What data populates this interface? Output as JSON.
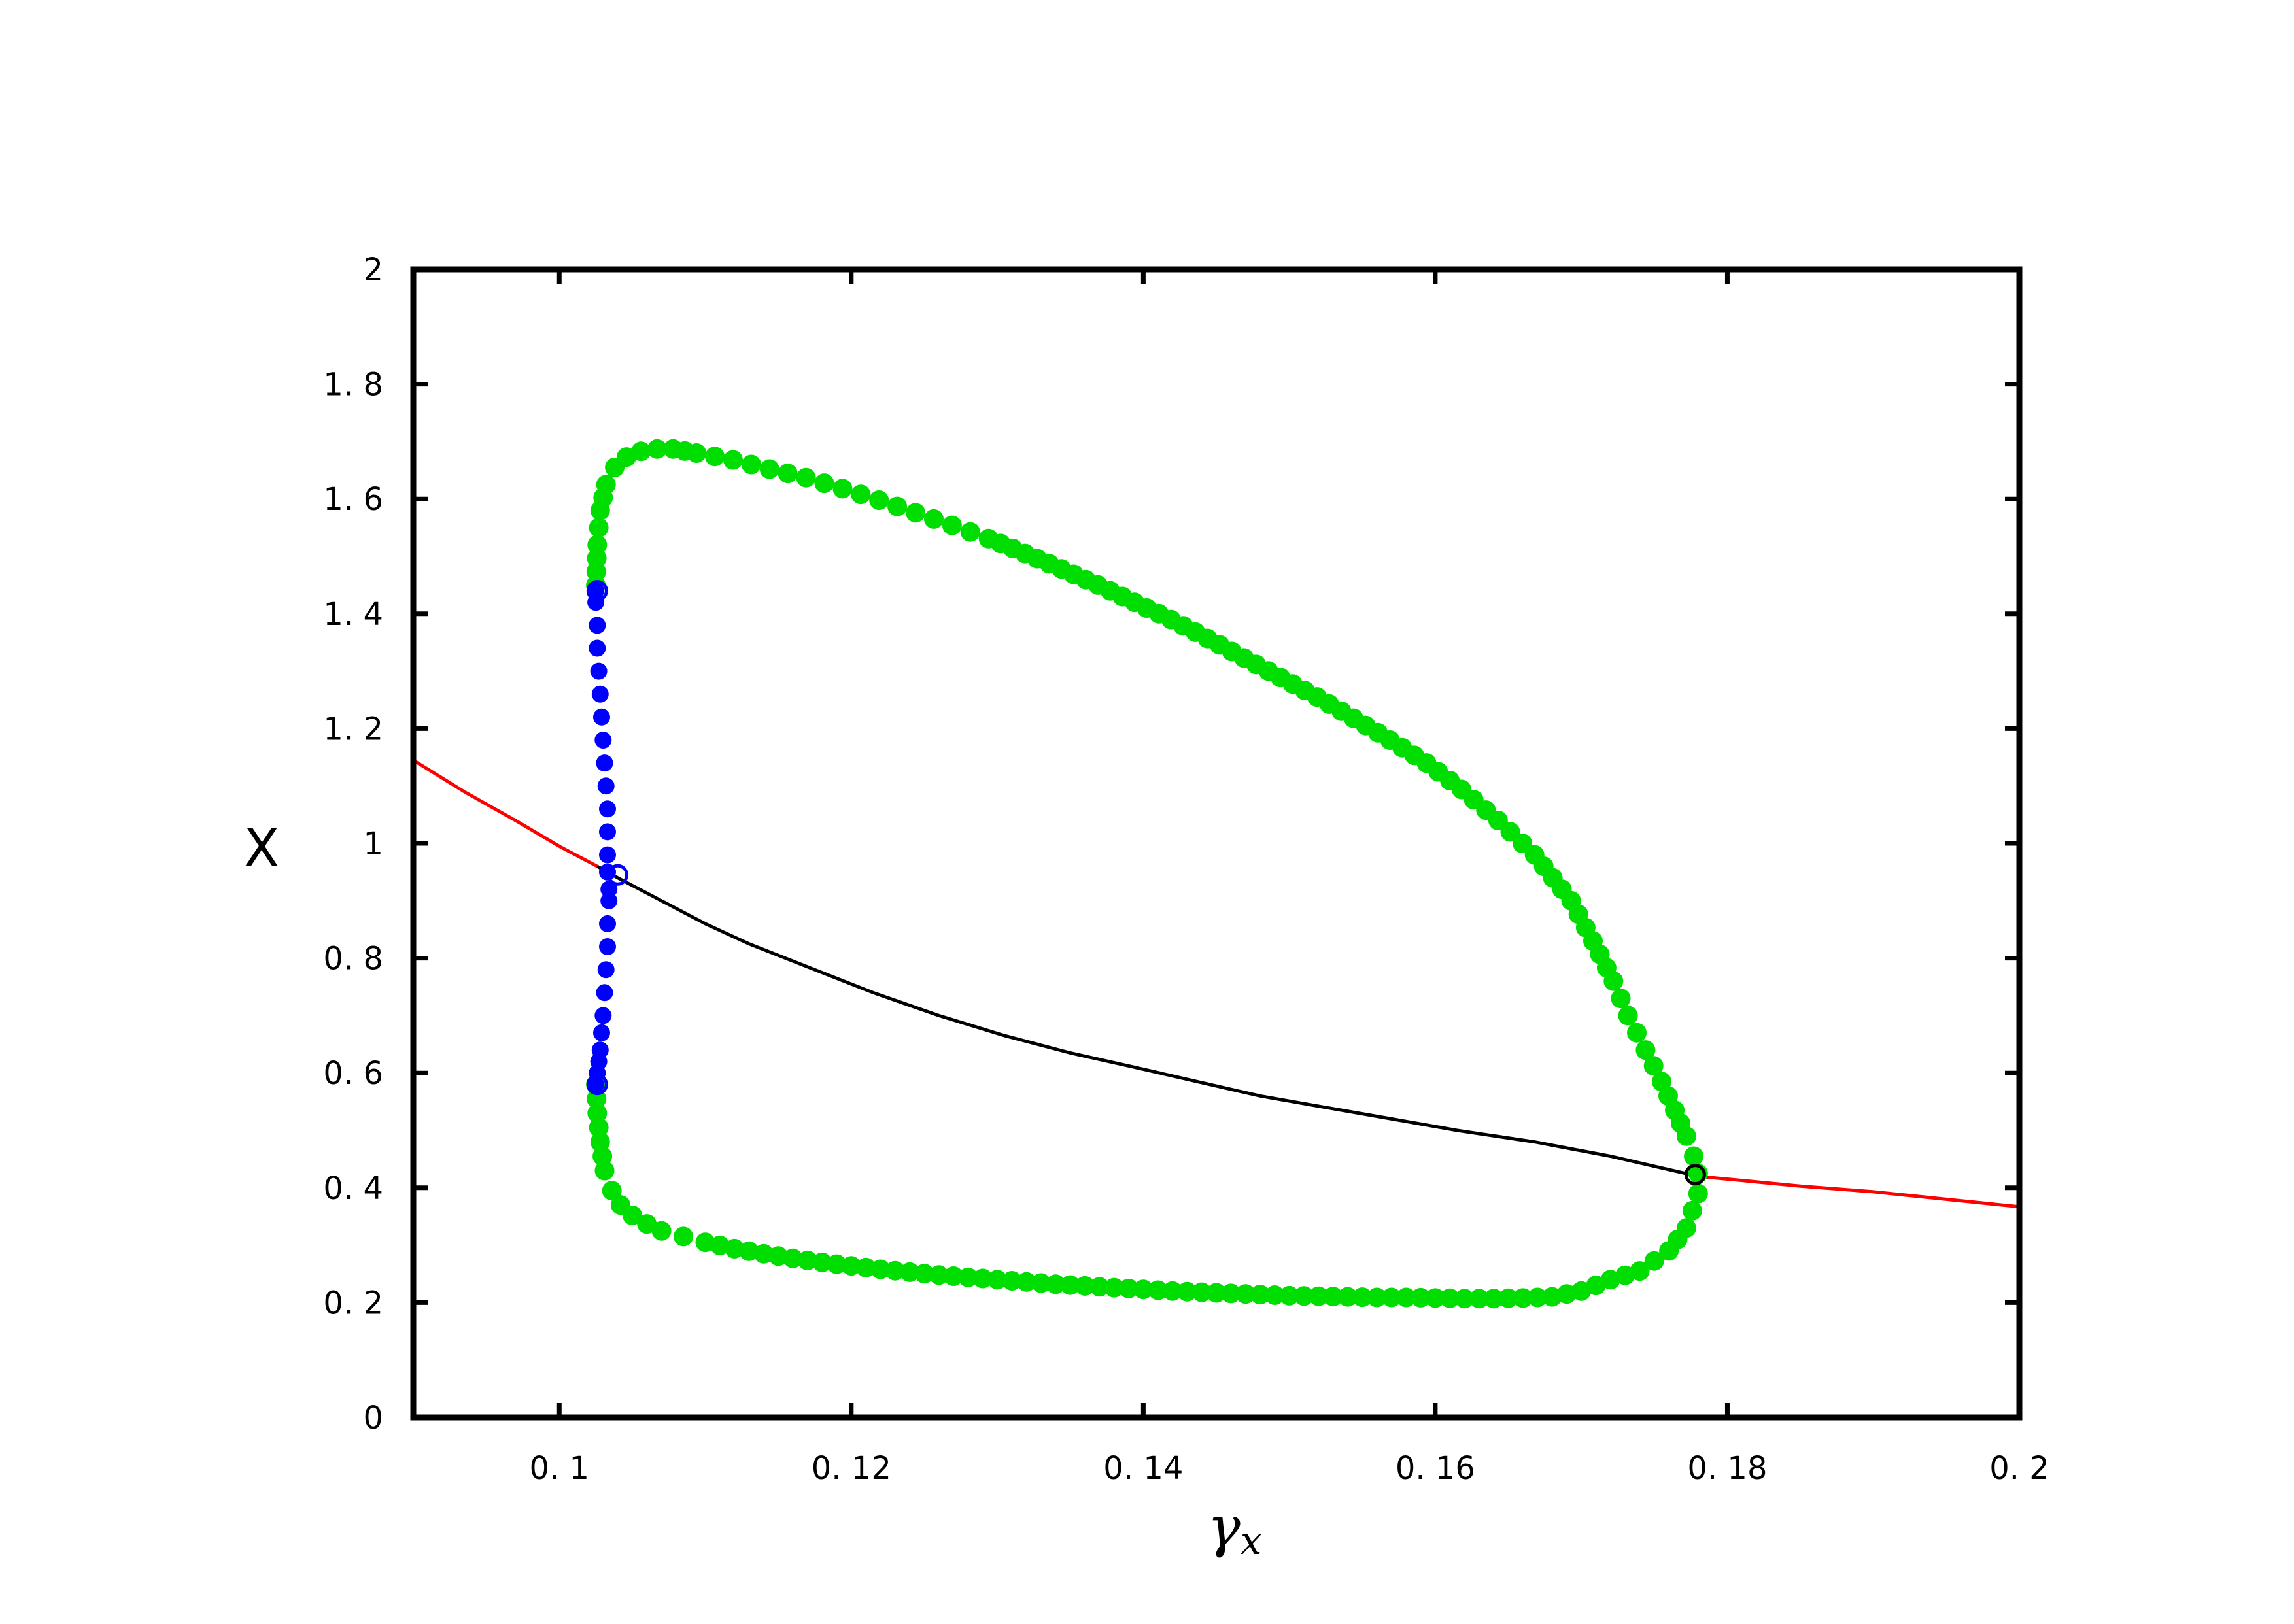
{
  "chart_data": {
    "type": "line",
    "title": "",
    "xlabel": "γx",
    "ylabel": "X",
    "xlim": [
      0.09,
      0.2
    ],
    "ylim": [
      0,
      2
    ],
    "xticks": [
      0.1,
      0.12,
      0.14,
      0.16,
      0.18,
      0.2
    ],
    "xtick_labels": [
      "0. 1",
      "0. 12",
      "0. 14",
      "0. 16",
      "0. 18",
      "0. 2"
    ],
    "yticks": [
      0,
      0.2,
      0.4,
      0.6,
      0.8,
      1,
      1.2,
      1.4,
      1.6,
      1.8,
      2
    ],
    "ytick_labels": [
      "0",
      "0. 2",
      "0. 4",
      "0. 6",
      "0. 8",
      "1",
      "1. 2",
      "1. 4",
      "1. 6",
      "1. 8",
      "2"
    ],
    "grid": false,
    "legend": "none",
    "series": [
      {
        "kind": "line",
        "color": "#ff0000",
        "x": [
          0.09,
          0.0935,
          0.097,
          0.1,
          0.1026
        ],
        "y": [
          1.145,
          1.09,
          1.04,
          0.995,
          0.96
        ]
      },
      {
        "kind": "line",
        "color": "#ff0000",
        "x": [
          0.178,
          0.185,
          0.19,
          0.195,
          0.2
        ],
        "y": [
          0.42,
          0.403,
          0.393,
          0.38,
          0.367
        ]
      },
      {
        "kind": "line",
        "color": "#000000",
        "x": [
          0.1026,
          0.104,
          0.107,
          0.11,
          0.113,
          0.117,
          0.1215,
          0.126,
          0.1305,
          0.135,
          0.1394,
          0.1437,
          0.148,
          0.1525,
          0.157,
          0.1615,
          0.1668,
          0.172,
          0.178
        ],
        "y": [
          0.96,
          0.94,
          0.9,
          0.86,
          0.825,
          0.785,
          0.74,
          0.7,
          0.665,
          0.635,
          0.61,
          0.585,
          0.56,
          0.54,
          0.52,
          0.5,
          0.48,
          0.455,
          0.42
        ]
      },
      {
        "kind": "markers",
        "color": "#00dd00",
        "x": [
          0.1025,
          0.1026,
          0.1028,
          0.1032,
          0.1038,
          0.1046,
          0.1056,
          0.1067,
          0.1078,
          0.1094,
          0.1119,
          0.1144,
          0.1169,
          0.1194,
          0.1219,
          0.1244,
          0.1269,
          0.1294,
          0.1319,
          0.1344,
          0.1369,
          0.1394,
          0.1419,
          0.1444,
          0.1469,
          0.1494,
          0.1519,
          0.1544,
          0.1569,
          0.1594,
          0.1618,
          0.1643,
          0.1668,
          0.1693,
          0.1708,
          0.1722,
          0.1732,
          0.1744,
          0.1755,
          0.1764,
          0.1772,
          0.1777,
          0.178,
          0.178,
          0.1772,
          0.176,
          0.174,
          0.172,
          0.17,
          0.168,
          0.166,
          0.164,
          0.162,
          0.16,
          0.158,
          0.156,
          0.154,
          0.152,
          0.15,
          0.148,
          0.146,
          0.144,
          0.142,
          0.14,
          0.138,
          0.136,
          0.134,
          0.132,
          0.13,
          0.128,
          0.126,
          0.124,
          0.122,
          0.12,
          0.118,
          0.116,
          0.114,
          0.112,
          0.11,
          0.1085,
          0.107,
          0.106,
          0.105,
          0.1042,
          0.1036,
          0.1031,
          0.1028,
          0.1026,
          0.1025
        ],
        "y": [
          1.45,
          1.52,
          1.58,
          1.625,
          1.655,
          1.673,
          1.683,
          1.687,
          1.687,
          1.68,
          1.668,
          1.652,
          1.637,
          1.618,
          1.598,
          1.576,
          1.554,
          1.531,
          1.505,
          1.478,
          1.45,
          1.42,
          1.39,
          1.357,
          1.323,
          1.289,
          1.255,
          1.218,
          1.18,
          1.14,
          1.094,
          1.04,
          0.98,
          0.9,
          0.83,
          0.76,
          0.7,
          0.64,
          0.585,
          0.535,
          0.49,
          0.455,
          0.425,
          0.39,
          0.33,
          0.29,
          0.255,
          0.24,
          0.22,
          0.21,
          0.208,
          0.207,
          0.207,
          0.208,
          0.209,
          0.209,
          0.21,
          0.211,
          0.212,
          0.214,
          0.216,
          0.218,
          0.22,
          0.223,
          0.226,
          0.229,
          0.232,
          0.236,
          0.24,
          0.244,
          0.248,
          0.253,
          0.258,
          0.264,
          0.27,
          0.277,
          0.285,
          0.294,
          0.305,
          0.315,
          0.325,
          0.337,
          0.352,
          0.37,
          0.395,
          0.43,
          0.48,
          0.53,
          0.58
        ]
      },
      {
        "kind": "markers",
        "color": "#0000ff",
        "x": [
          0.1025,
          0.1025,
          0.1026,
          0.1026,
          0.1027,
          0.1028,
          0.1029,
          0.103,
          0.1031,
          0.1032,
          0.1033,
          0.1033,
          0.1033,
          0.1033,
          0.1034,
          0.1034,
          0.1033,
          0.1033,
          0.1032,
          0.1031,
          0.103,
          0.1029,
          0.1028,
          0.1027,
          0.1026,
          0.1025
        ],
        "y": [
          1.44,
          1.42,
          1.38,
          1.34,
          1.3,
          1.26,
          1.22,
          1.18,
          1.14,
          1.1,
          1.06,
          1.02,
          0.98,
          0.95,
          0.92,
          0.9,
          0.86,
          0.82,
          0.78,
          0.74,
          0.7,
          0.67,
          0.64,
          0.62,
          0.6,
          0.58
        ]
      }
    ],
    "hollow_markers": [
      {
        "x": 0.1026,
        "y": 1.44,
        "color": "#0000ff"
      },
      {
        "x": 0.104,
        "y": 0.945,
        "color": "#0000ff"
      },
      {
        "x": 0.1026,
        "y": 0.58,
        "color": "#0000ff"
      },
      {
        "x": 0.1778,
        "y": 0.423,
        "color": "#000000"
      }
    ]
  }
}
